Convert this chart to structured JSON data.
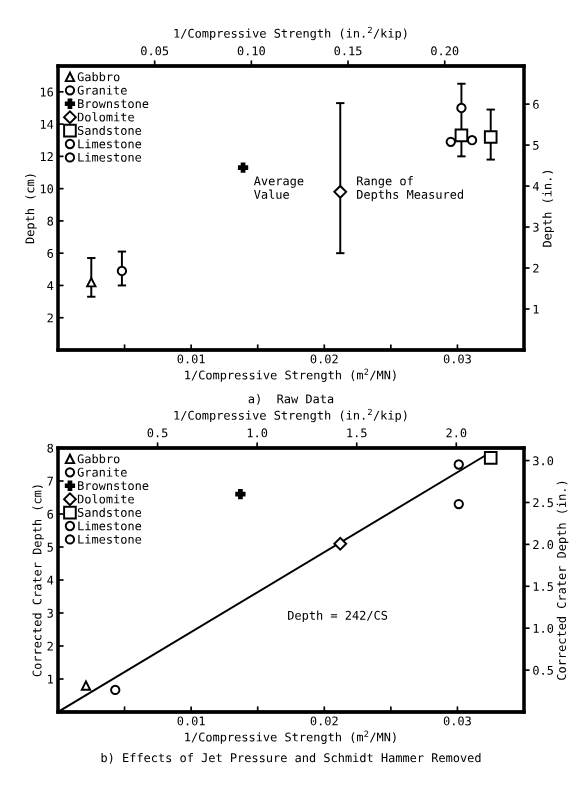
{
  "chart_data": [
    {
      "type": "scatter",
      "title": "a)  Raw Data",
      "xlabel": "1/Compressive Strength (m$^{2}$/MN)",
      "x2label": "1/Compressive Strength (in.$^{2}$/kip)",
      "ylabel": "Depth (cm)",
      "y2label": "Depth (in.)",
      "xlim": [
        0,
        0.035
      ],
      "xticks": [
        {
          "value": 0,
          "label": null
        },
        {
          "value": 0.005,
          "label": null
        },
        0.01,
        {
          "value": 0.015,
          "label": null
        },
        0.02,
        {
          "value": 0.025,
          "label": null
        },
        0.03
      ],
      "x2lim": [
        0,
        0.241
      ],
      "x2ticks": [
        0.05,
        {
          "value": 0.1,
          "label": "0.10"
        },
        0.15,
        {
          "value": 0.2,
          "label": "0.20"
        }
      ],
      "ylim": [
        0,
        17.6
      ],
      "yticks": [
        2,
        4,
        6,
        8,
        10,
        12,
        14,
        16
      ],
      "y2lim": [
        0,
        6.93
      ],
      "y2ticks": [
        1,
        2,
        3,
        4,
        5,
        6
      ],
      "grid": false,
      "legend": "top left",
      "series": [
        {
          "name": "Gabbro",
          "color": "#000000",
          "marker": "triangle",
          "x": [
            0.0025
          ],
          "values": [
            4.2
          ],
          "errors": [
            [
              3.3,
              5.7
            ]
          ]
        },
        {
          "name": "Granite",
          "color": "#000000",
          "marker": "circle",
          "x": [
            0.0048,
            0.0303
          ],
          "values": [
            4.9,
            15.0
          ],
          "errors": [
            [
              4.0,
              6.1
            ],
            null
          ]
        },
        {
          "name": "Brownstone",
          "color": "#000000",
          "marker": "cross",
          "x": [
            0.0139
          ],
          "values": [
            11.3
          ],
          "errors": [
            null
          ]
        },
        {
          "name": "Dolomite",
          "color": "#000000",
          "marker": "diamond",
          "x": [
            0.0212
          ],
          "values": [
            9.8
          ],
          "errors": [
            [
              6.0,
              15.3
            ]
          ]
        },
        {
          "name": "Sandstone",
          "color": "#000000",
          "marker": "square",
          "x": [
            0.0303,
            0.0325
          ],
          "values": [
            13.3,
            13.2
          ],
          "errors": [
            [
              12.0,
              16.5
            ],
            [
              11.8,
              14.9
            ]
          ]
        },
        {
          "name": "Limestone",
          "color": "#000000",
          "marker": "circle",
          "x": [
            0.0311
          ],
          "values": [
            13.0
          ],
          "errors": [
            null
          ]
        },
        {
          "name": "Limestone",
          "color": "#000000",
          "marker": "circle",
          "x": [
            0.0295
          ],
          "values": [
            12.9
          ],
          "errors": [
            null
          ]
        }
      ],
      "annotations": [
        "Average Value",
        "Range of Depths Measured"
      ]
    },
    {
      "type": "scatter",
      "title": "b) Effects of Jet Pressure and Schmidt Hammer Removed",
      "xlabel": "1/Compressive Strength (m$^{2}$/MN)",
      "x2label": "1/Compressive Strength (in.$^{2}$/kip)",
      "ylabel": "Corrected Crater Depth (cm)",
      "y2label": "Corrected Crater Depth (in.)",
      "xlim": [
        0,
        0.035
      ],
      "xticks": [
        {
          "value": 0,
          "label": null
        },
        {
          "value": 0.005,
          "label": null
        },
        0.01,
        {
          "value": 0.015,
          "label": null
        },
        0.02,
        {
          "value": 0.025,
          "label": null
        },
        0.03
      ],
      "x2lim": [
        0,
        2.34
      ],
      "x2ticks": [
        0.5,
        {
          "value": 1,
          "label": "1.0"
        },
        1.5,
        {
          "value": 2,
          "label": "2.0"
        }
      ],
      "ylim": [
        0,
        8
      ],
      "yticks": [
        1,
        2,
        3,
        4,
        5,
        6,
        7,
        8
      ],
      "y2lim": [
        0,
        3.15
      ],
      "y2ticks": [
        0.5,
        {
          "value": 1,
          "label": "1.0"
        },
        1.5,
        {
          "value": 2,
          "label": "2.0"
        },
        2.5,
        {
          "value": 3,
          "label": "3.0"
        }
      ],
      "grid": false,
      "legend": "top left",
      "series": [
        {
          "name": "Gabbro",
          "color": "#000000",
          "marker": "triangle",
          "x": [
            0.0021
          ],
          "values": [
            0.8
          ]
        },
        {
          "name": "Granite",
          "color": "#000000",
          "marker": "circle",
          "x": [
            0.0043
          ],
          "values": [
            0.67
          ]
        },
        {
          "name": "Brownstone",
          "color": "#000000",
          "marker": "cross",
          "x": [
            0.0137
          ],
          "values": [
            6.6
          ]
        },
        {
          "name": "Dolomite",
          "color": "#000000",
          "marker": "diamond",
          "x": [
            0.0212
          ],
          "values": [
            5.1
          ]
        },
        {
          "name": "Sandstone",
          "color": "#000000",
          "marker": "square",
          "x": [
            0.0325
          ],
          "values": [
            7.7
          ]
        },
        {
          "name": "Limestone",
          "color": "#000000",
          "marker": "circle",
          "x": [
            0.0301
          ],
          "values": [
            7.5
          ]
        },
        {
          "name": "Limestone",
          "color": "#000000",
          "marker": "circle",
          "x": [
            0.0301
          ],
          "values": [
            6.3
          ]
        },
        {
          "type": "line",
          "color": "#000000",
          "x": [
            0,
            0.0325
          ],
          "values": [
            0,
            7.87
          ]
        }
      ],
      "annotations": [
        "Depth = 242/CS"
      ]
    }
  ]
}
